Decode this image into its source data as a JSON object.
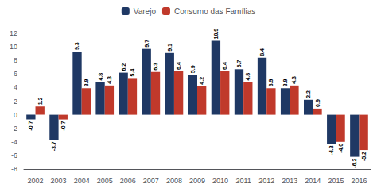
{
  "chart_data": {
    "type": "bar",
    "categories": [
      "2002",
      "2003",
      "2004",
      "2005",
      "2006",
      "2007",
      "2008",
      "2009",
      "2010",
      "2011",
      "2012",
      "2013",
      "2014",
      "2015",
      "2016"
    ],
    "series": [
      {
        "name": "Varejo",
        "color": "#1f3864",
        "values": [
          -0.7,
          -3.7,
          9.3,
          4.8,
          6.2,
          9.7,
          9.1,
          5.9,
          10.9,
          6.7,
          8.4,
          3.9,
          2.2,
          -4.3,
          -6.2
        ]
      },
      {
        "name": "Consumo das Famílias",
        "color": "#c0392b",
        "values": [
          1.2,
          -0.7,
          3.9,
          4.3,
          5.4,
          6.3,
          6.4,
          4.2,
          6.4,
          4.8,
          3.9,
          4.3,
          0.9,
          -4.0,
          -5.2
        ],
        "value_labels": [
          "1.2",
          "-0.7",
          "3.9",
          "4.3",
          "5.4",
          "6.3",
          "6.4",
          "4.2",
          "6.4",
          "4.8",
          "3.9",
          "4.3",
          "0.9",
          "-4.0",
          "-5.2"
        ]
      }
    ],
    "ylim": [
      -8,
      12
    ],
    "yticks": [
      -8,
      -6,
      -4,
      -2,
      0,
      2,
      4,
      6,
      8,
      10,
      12
    ],
    "grid": false,
    "legend": "top",
    "data_labels": true
  }
}
